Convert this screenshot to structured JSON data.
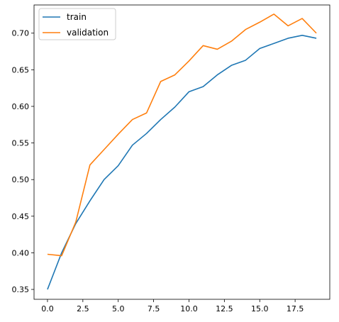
{
  "chart_data": {
    "type": "line",
    "title": "",
    "xlabel": "",
    "ylabel": "",
    "x": [
      0,
      1,
      2,
      3,
      4,
      5,
      6,
      7,
      8,
      9,
      10,
      11,
      12,
      13,
      14,
      15,
      16,
      17,
      18,
      19
    ],
    "series": [
      {
        "name": "train",
        "color": "#1f77b4",
        "values": [
          0.35,
          0.4,
          0.44,
          0.471,
          0.5,
          0.519,
          0.547,
          0.563,
          0.582,
          0.599,
          0.62,
          0.627,
          0.643,
          0.656,
          0.663,
          0.679,
          0.686,
          0.693,
          0.697,
          0.693
        ]
      },
      {
        "name": "validation",
        "color": "#ff7f0e",
        "values": [
          0.398,
          0.396,
          0.442,
          0.52,
          0.541,
          0.562,
          0.582,
          0.591,
          0.634,
          0.643,
          0.662,
          0.683,
          0.678,
          0.689,
          0.705,
          0.715,
          0.726,
          0.71,
          0.72,
          0.7
        ]
      }
    ],
    "xlim": [
      -0.95,
      19.95
    ],
    "ylim": [
      0.3365,
      0.7385
    ],
    "x_ticks": [
      0.0,
      2.5,
      5.0,
      7.5,
      10.0,
      12.5,
      15.0,
      17.5
    ],
    "x_tick_labels": [
      "0.0",
      "2.5",
      "5.0",
      "7.5",
      "10.0",
      "12.5",
      "15.0",
      "17.5"
    ],
    "y_ticks": [
      0.35,
      0.4,
      0.45,
      0.5,
      0.55,
      0.6,
      0.65,
      0.7
    ],
    "y_tick_labels": [
      "0.35",
      "0.40",
      "0.45",
      "0.50",
      "0.55",
      "0.60",
      "0.65",
      "0.70"
    ],
    "grid": false,
    "legend_position": "upper left"
  }
}
